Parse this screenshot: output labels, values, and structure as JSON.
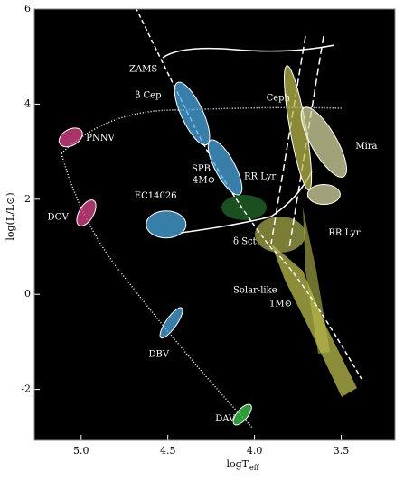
{
  "chart_data": {
    "type": "regions",
    "ylabel": "log(L/L⊙)",
    "xlabel": {
      "main": "logT",
      "sub": "eff"
    },
    "xlim": [
      5.27,
      3.19
    ],
    "ylim": [
      -3.07,
      6
    ],
    "xticks": [
      {
        "value": 5.0,
        "label": "5.0"
      },
      {
        "value": 4.5,
        "label": "4.5"
      },
      {
        "value": 4.0,
        "label": "4.0"
      },
      {
        "value": 3.5,
        "label": "3.5"
      }
    ],
    "yticks": [
      -2,
      0,
      2,
      4,
      6
    ],
    "regions": [
      {
        "label": "PNNV",
        "x": 5.06,
        "y": 3.3,
        "color": "#e0468e"
      },
      {
        "label": "DOV",
        "x": 4.97,
        "y": 1.71,
        "color": "#e0468e"
      },
      {
        "label": "DBV",
        "x": 4.48,
        "y": -0.6,
        "color": "#4aa8e0"
      },
      {
        "label": "DAV",
        "x": 4.07,
        "y": -2.53,
        "color": "#3ccf4a"
      },
      {
        "label": "EC14026",
        "x": 4.51,
        "y": 1.47,
        "color": "#4aa8e0"
      },
      {
        "label": "β Cep",
        "x": 4.36,
        "y": 3.8,
        "color": "#4aa8e0"
      },
      {
        "label": "SPB",
        "x": 4.17,
        "y": 2.67,
        "color": "#4aa8e0"
      },
      {
        "label": "Ceph",
        "x": 3.75,
        "y": 3.5,
        "color": "#b8b84a"
      },
      {
        "label": "Mira",
        "x": 3.6,
        "y": 3.2,
        "color": "#d8d8a0"
      },
      {
        "label": "RR Lyr",
        "x": 3.6,
        "y": 2.1,
        "color": "#d8d8a0"
      }
    ],
    "annotations": [
      "ZAMS",
      "RR Lyr",
      "4M⊙",
      "δ Sct",
      "Solar-like",
      "1M⊙"
    ]
  }
}
